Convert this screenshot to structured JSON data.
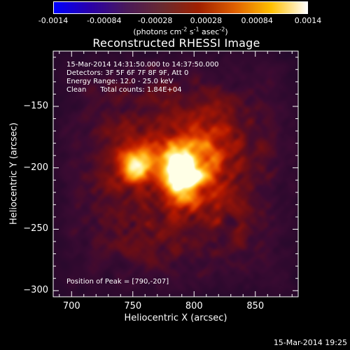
{
  "colorbar": {
    "tick_labels": [
      "-0.0014",
      "-0.00084",
      "-0.00028",
      "0.00028",
      "0.00084",
      "0.0014"
    ],
    "tick_values": [
      -0.0014,
      -0.00084,
      -0.00028,
      0.00028,
      0.00084,
      0.0014
    ],
    "range": [
      -0.0014,
      0.0014
    ],
    "units_prefix": "(photons cm",
    "units_sup1": "-2",
    "units_mid1": " s",
    "units_sup2": "-1",
    "units_mid2": " asec",
    "units_sup3": "-2",
    "units_suffix": ")",
    "colors": [
      "#0000ff",
      "#2a00aa",
      "#4a1a5a",
      "#6a2a30",
      "#a02000",
      "#e06000",
      "#ffc000",
      "#ffffff"
    ]
  },
  "title": "Reconstructed RHESSI Image",
  "info": {
    "line1": "15-Mar-2014 14:31:50.000 to 14:37:50.000",
    "line2": "Detectors: 3F 5F 6F 7F 8F 9F, Att 0",
    "line3": "Energy Range: 12.0 - 25.0 keV",
    "line4_method": "Clean",
    "line4_counts": "Total counts: 1.84E+04",
    "peak": "Position of Peak = [790,-207]"
  },
  "axes": {
    "xlabel": "Heliocentric X (arcsec)",
    "ylabel": "Heliocentric Y (arcsec)",
    "xticks": [
      {
        "label": "700",
        "value": 700
      },
      {
        "label": "750",
        "value": 750
      },
      {
        "label": "800",
        "value": 800
      },
      {
        "label": "850",
        "value": 850
      }
    ],
    "yticks": [
      {
        "label": "−150",
        "value": -150
      },
      {
        "label": "−200",
        "value": -200
      },
      {
        "label": "−250",
        "value": -250
      },
      {
        "label": "−300",
        "value": -300
      }
    ],
    "xlim": [
      685,
      885
    ],
    "ylim": [
      -305,
      -105
    ]
  },
  "image": {
    "peak": [
      790,
      -207
    ],
    "sources": [
      {
        "x": 790,
        "y": -207,
        "amp": 1.0,
        "sx": 10,
        "sy": 12
      },
      {
        "x": 752,
        "y": -200,
        "amp": 0.62,
        "sx": 8,
        "sy": 8
      },
      {
        "x": 770,
        "y": -190,
        "amp": 0.35,
        "sx": 25,
        "sy": 12
      },
      {
        "x": 810,
        "y": -185,
        "amp": 0.3,
        "sx": 15,
        "sy": 25
      }
    ]
  },
  "footer_timestamp": "15-Mar-2014 19:25"
}
